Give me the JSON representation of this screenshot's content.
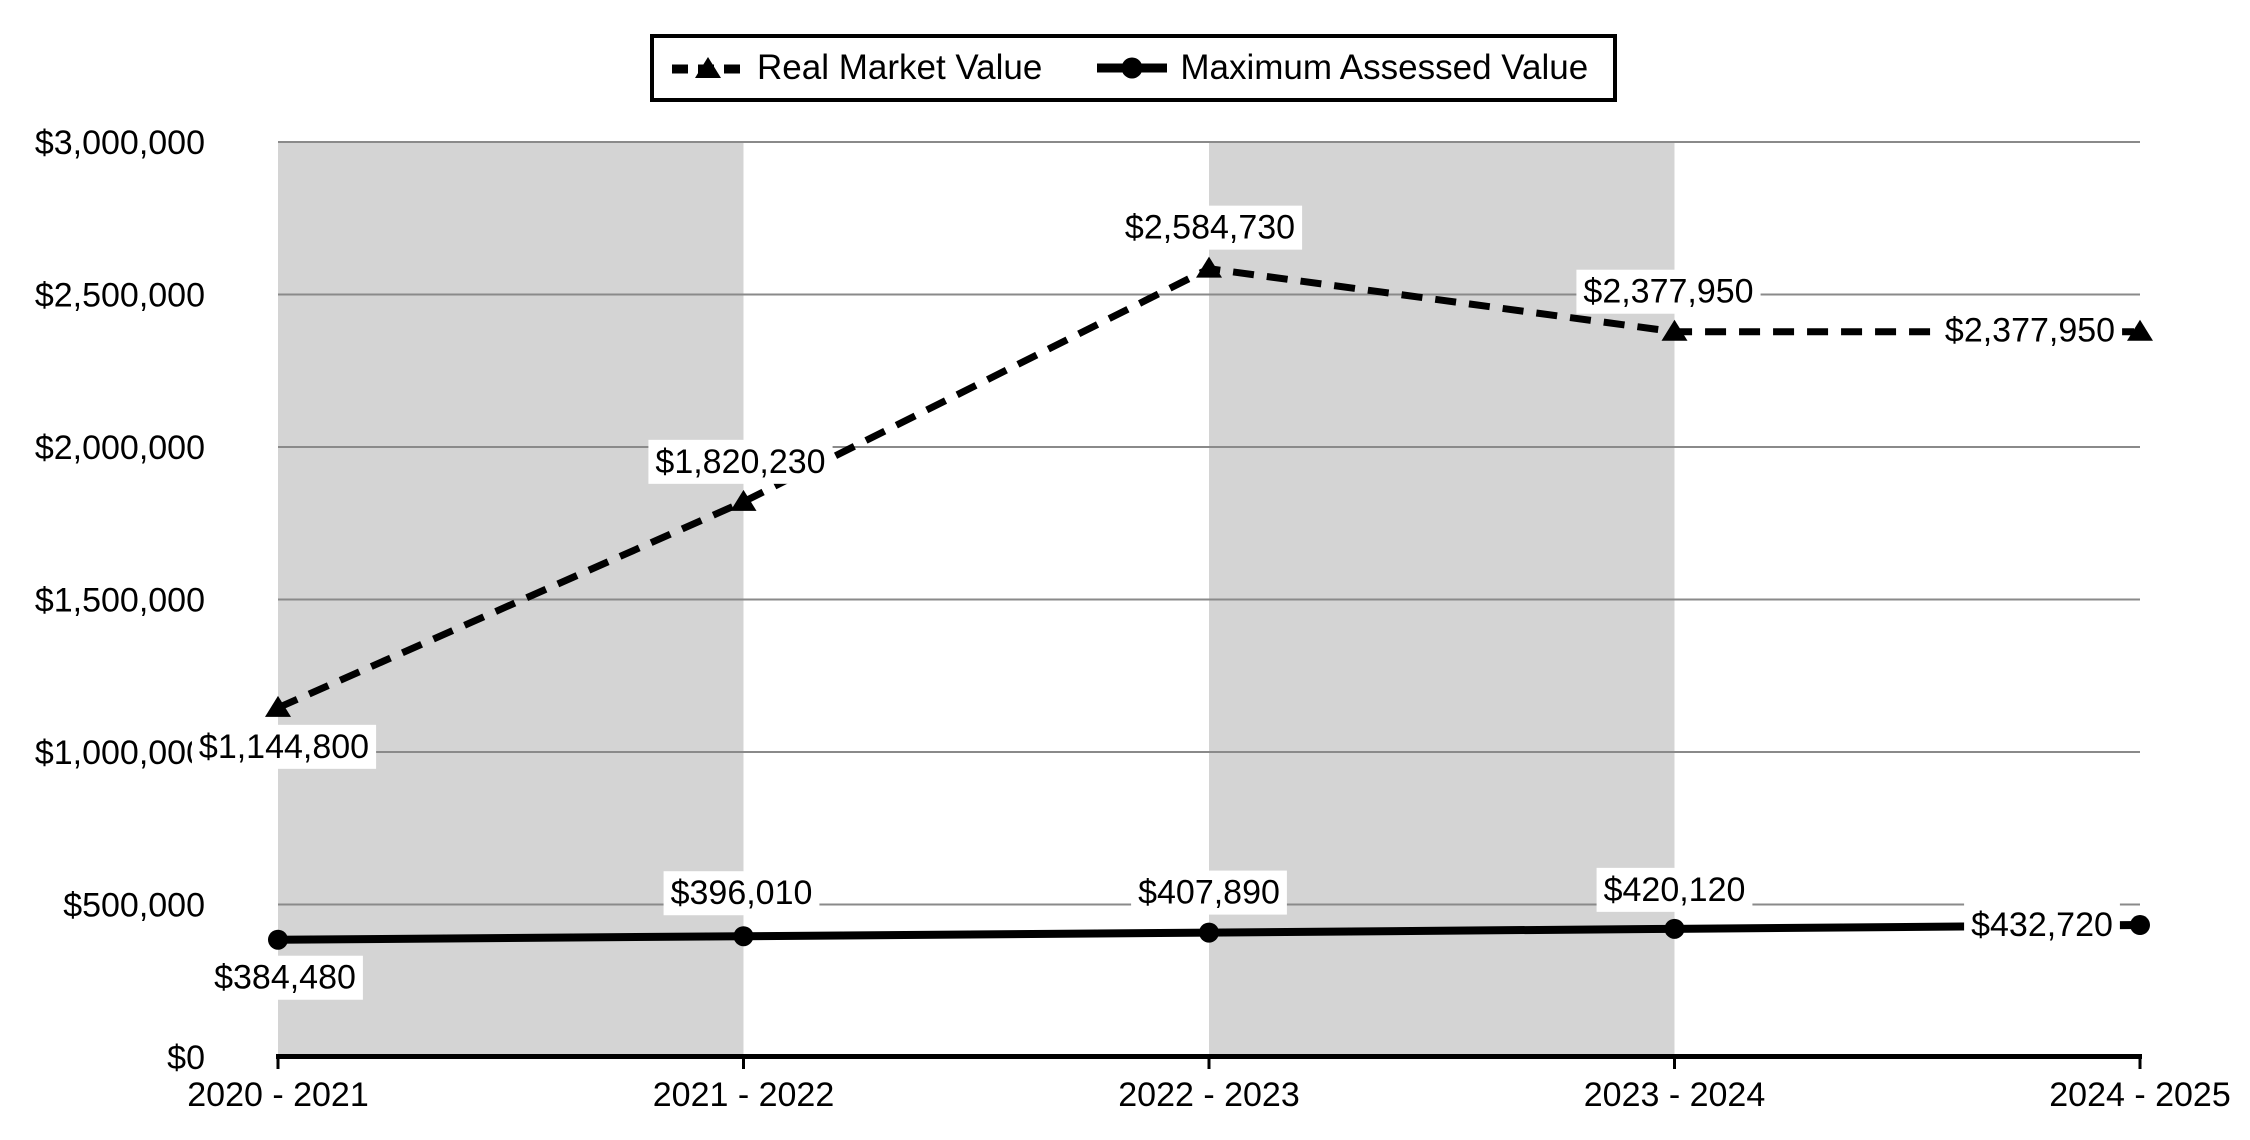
{
  "page": {
    "background": "#ffffff"
  },
  "legend": {
    "items": [
      {
        "label": "Real Market Value",
        "marker": "dashed-line-triangle"
      },
      {
        "label": "Maximum Assessed Value",
        "marker": "solid-line-circle"
      }
    ]
  },
  "chart_data": {
    "type": "line",
    "title": "",
    "xlabel": "",
    "ylabel": "",
    "categories": [
      "2020 - 2021",
      "2021 - 2022",
      "2022 - 2023",
      "2023 - 2024",
      "2024 - 2025"
    ],
    "series": [
      {
        "name": "Real Market Value",
        "line_style": "dashed",
        "marker": "triangle",
        "color": "#000000",
        "values": [
          1144800,
          1820230,
          2584730,
          2377950,
          2377950
        ],
        "data_labels": [
          "$1,144,800",
          "$1,820,230",
          "$2,584,730",
          "$2,377,950",
          "$2,377,950"
        ],
        "label_offsets": [
          [
            6,
            38
          ],
          [
            -3,
            -41
          ],
          [
            1,
            -42
          ],
          [
            -6,
            -41
          ],
          [
            -110,
            -2
          ]
        ]
      },
      {
        "name": "Maximum Assessed Value",
        "line_style": "solid",
        "marker": "circle",
        "color": "#000000",
        "values": [
          384480,
          396010,
          407890,
          420120,
          432720
        ],
        "data_labels": [
          "$384,480",
          "$396,010",
          "$407,890",
          "$420,120",
          "$432,720"
        ],
        "label_offsets": [
          [
            7,
            37
          ],
          [
            -2,
            -44
          ],
          [
            0,
            -41
          ],
          [
            0,
            -40
          ],
          [
            -98,
            -1
          ]
        ]
      }
    ],
    "ylim": [
      0,
      3000000
    ],
    "ytick_step": 500000,
    "ytick_labels": [
      "$0",
      "$500,000",
      "$1,000,000",
      "$1,500,000",
      "$2,000,000",
      "$2,500,000",
      "$3,000,000"
    ],
    "grid": true,
    "gridline_color": "#8a8a8a",
    "axis_color": "#000000",
    "band_color": "#d4d4d4",
    "label_background": "#ffffff",
    "shaded_band_category_spans": [
      [
        0,
        1
      ],
      [
        2,
        3
      ]
    ],
    "legend_position": "top-center"
  }
}
